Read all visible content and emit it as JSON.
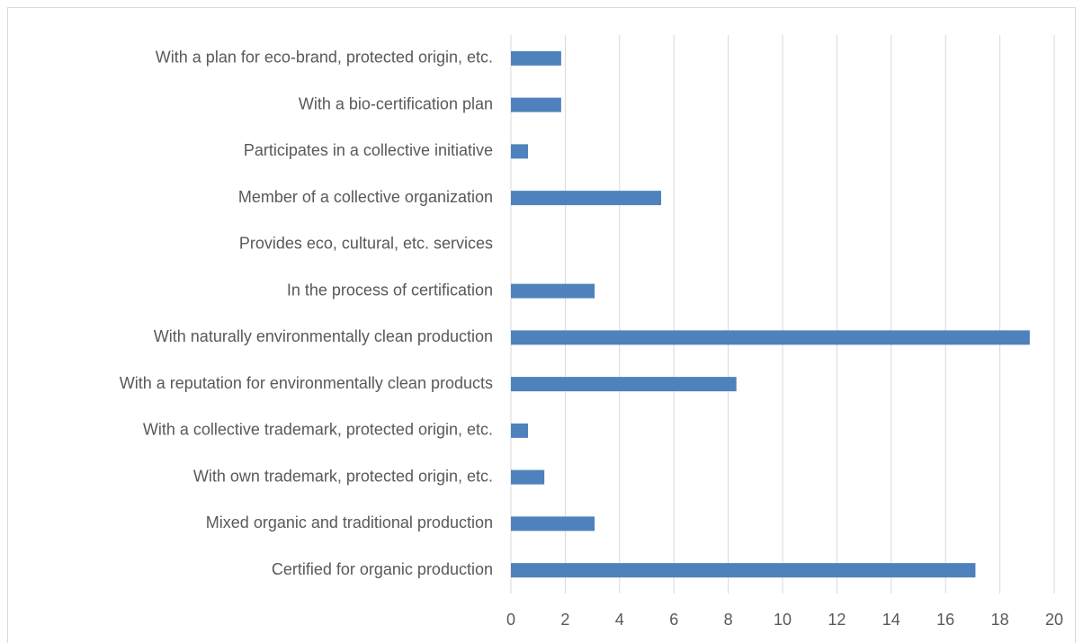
{
  "chart_data": {
    "type": "bar",
    "orientation": "horizontal",
    "categories": [
      "With a plan for eco-brand, protected origin, etc.",
      "With a bio-certification plan",
      "Participates in a collective initiative",
      "Member of a collective organization",
      "Provides eco, cultural, etc. services",
      "In the process of certification",
      "With naturally environmentally clean production",
      "With a reputation for environmentally clean products",
      "With a collective trademark, protected origin, etc.",
      "With own trademark, protected origin, etc.",
      "Mixed organic and traditional production",
      "Certified for organic production"
    ],
    "values": [
      1.85,
      1.85,
      0.63,
      5.53,
      0,
      3.08,
      19.1,
      8.3,
      0.63,
      1.23,
      3.08,
      17.1
    ],
    "color": "#4f81bd",
    "xlim": [
      0,
      20
    ],
    "xticks": [
      0,
      2,
      4,
      6,
      8,
      10,
      12,
      14,
      16,
      18,
      20
    ],
    "grid": true
  }
}
